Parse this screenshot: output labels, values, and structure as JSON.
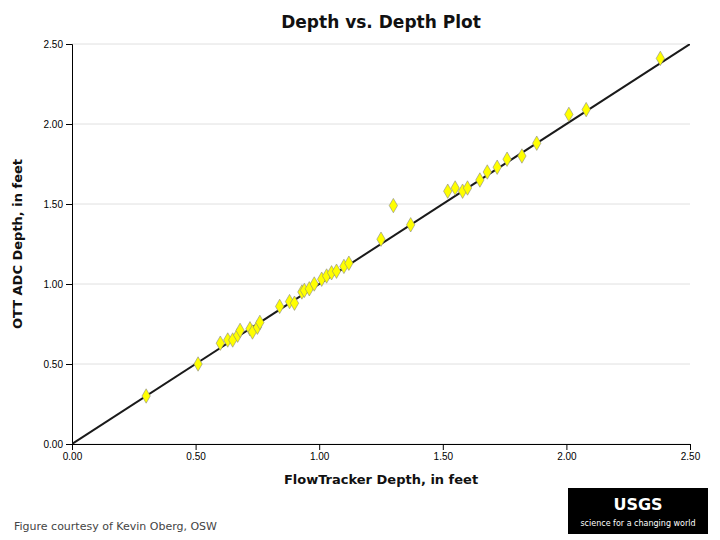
{
  "chart_data": {
    "type": "scatter",
    "title": "Depth vs. Depth Plot",
    "xlabel": "FlowTracker Depth, in feet",
    "ylabel": "OTT ADC Depth, in feet",
    "annotations": [
      "Figure courtesy of Kevin Oberg, OSW",
      "USGS",
      "science for a changing world"
    ],
    "xlim": [
      0.0,
      2.5
    ],
    "ylim": [
      0.0,
      2.5
    ],
    "xticks": [
      {
        "value": 0.0,
        "label": "0.00"
      },
      {
        "value": 0.5,
        "label": "0.50"
      },
      {
        "value": 1.0,
        "label": "1.00"
      },
      {
        "value": 1.5,
        "label": "1.50"
      },
      {
        "value": 2.0,
        "label": "2.00"
      },
      {
        "value": 2.5,
        "label": "2.50"
      }
    ],
    "yticks": [
      {
        "value": 0.0,
        "label": "0.00"
      },
      {
        "value": 0.5,
        "label": "0.50"
      },
      {
        "value": 1.0,
        "label": "1.00"
      },
      {
        "value": 1.5,
        "label": "1.50"
      },
      {
        "value": 2.0,
        "label": "2.00"
      },
      {
        "value": 2.5,
        "label": "2.50"
      }
    ],
    "grid": "y",
    "series": [
      {
        "type": "line",
        "color": "#1a1a1a",
        "x": [
          0,
          2.5
        ],
        "values": [
          0,
          2.5
        ]
      },
      {
        "type": "scatter",
        "marker": "diamond",
        "color": "#FFFF00",
        "x": [
          0.3,
          0.51,
          0.6,
          0.63,
          0.65,
          0.67,
          0.68,
          0.72,
          0.73,
          0.75,
          0.76,
          0.84,
          0.88,
          0.9,
          0.93,
          0.94,
          0.96,
          0.98,
          1.01,
          1.03,
          1.05,
          1.07,
          1.1,
          1.12,
          1.25,
          1.3,
          1.37,
          1.52,
          1.55,
          1.58,
          1.6,
          1.65,
          1.68,
          1.72,
          1.76,
          1.82,
          1.88,
          2.01,
          2.08,
          2.38
        ],
        "values": [
          0.3,
          0.5,
          0.63,
          0.65,
          0.65,
          0.68,
          0.71,
          0.72,
          0.7,
          0.73,
          0.76,
          0.86,
          0.89,
          0.88,
          0.95,
          0.96,
          0.97,
          1.0,
          1.03,
          1.05,
          1.07,
          1.08,
          1.11,
          1.13,
          1.28,
          1.49,
          1.37,
          1.58,
          1.6,
          1.58,
          1.6,
          1.65,
          1.7,
          1.73,
          1.78,
          1.8,
          1.88,
          2.06,
          2.09,
          2.41
        ]
      }
    ]
  }
}
